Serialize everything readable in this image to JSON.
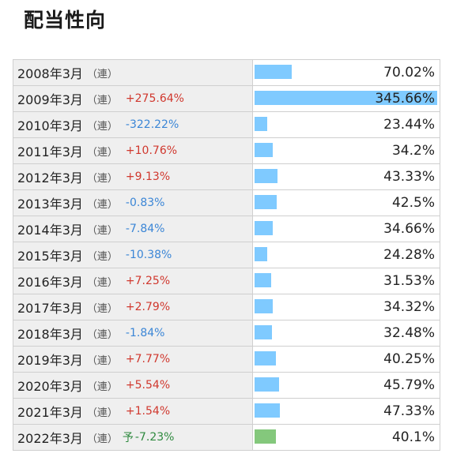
{
  "page": {
    "title": "配当性向"
  },
  "colors": {
    "bar": "#7fcaff",
    "bar_forecast": "#84c87c",
    "positive": "#d0382e",
    "negative": "#3b86d6",
    "forecast": "#2f8a3f"
  },
  "bar_scale_max": 345.66,
  "rows": [
    {
      "period": "2008年3月",
      "consol": "（連）",
      "yoy": "",
      "yoy_sign": "",
      "forecast_mark": "",
      "value": 70.02,
      "value_label": "70.02%",
      "forecast": false
    },
    {
      "period": "2009年3月",
      "consol": "（連）",
      "yoy": "+275.64%",
      "yoy_sign": "pos",
      "forecast_mark": "",
      "value": 345.66,
      "value_label": "345.66%",
      "forecast": false
    },
    {
      "period": "2010年3月",
      "consol": "（連）",
      "yoy": "-322.22%",
      "yoy_sign": "neg",
      "forecast_mark": "",
      "value": 23.44,
      "value_label": "23.44%",
      "forecast": false
    },
    {
      "period": "2011年3月",
      "consol": "（連）",
      "yoy": "+10.76%",
      "yoy_sign": "pos",
      "forecast_mark": "",
      "value": 34.2,
      "value_label": "34.2%",
      "forecast": false
    },
    {
      "period": "2012年3月",
      "consol": "（連）",
      "yoy": "+9.13%",
      "yoy_sign": "pos",
      "forecast_mark": "",
      "value": 43.33,
      "value_label": "43.33%",
      "forecast": false
    },
    {
      "period": "2013年3月",
      "consol": "（連）",
      "yoy": "-0.83%",
      "yoy_sign": "neg",
      "forecast_mark": "",
      "value": 42.5,
      "value_label": "42.5%",
      "forecast": false
    },
    {
      "period": "2014年3月",
      "consol": "（連）",
      "yoy": "-7.84%",
      "yoy_sign": "neg",
      "forecast_mark": "",
      "value": 34.66,
      "value_label": "34.66%",
      "forecast": false
    },
    {
      "period": "2015年3月",
      "consol": "（連）",
      "yoy": "-10.38%",
      "yoy_sign": "neg",
      "forecast_mark": "",
      "value": 24.28,
      "value_label": "24.28%",
      "forecast": false
    },
    {
      "period": "2016年3月",
      "consol": "（連）",
      "yoy": "+7.25%",
      "yoy_sign": "pos",
      "forecast_mark": "",
      "value": 31.53,
      "value_label": "31.53%",
      "forecast": false
    },
    {
      "period": "2017年3月",
      "consol": "（連）",
      "yoy": "+2.79%",
      "yoy_sign": "pos",
      "forecast_mark": "",
      "value": 34.32,
      "value_label": "34.32%",
      "forecast": false
    },
    {
      "period": "2018年3月",
      "consol": "（連）",
      "yoy": "-1.84%",
      "yoy_sign": "neg",
      "forecast_mark": "",
      "value": 32.48,
      "value_label": "32.48%",
      "forecast": false
    },
    {
      "period": "2019年3月",
      "consol": "（連）",
      "yoy": "+7.77%",
      "yoy_sign": "pos",
      "forecast_mark": "",
      "value": 40.25,
      "value_label": "40.25%",
      "forecast": false
    },
    {
      "period": "2020年3月",
      "consol": "（連）",
      "yoy": "+5.54%",
      "yoy_sign": "pos",
      "forecast_mark": "",
      "value": 45.79,
      "value_label": "45.79%",
      "forecast": false
    },
    {
      "period": "2021年3月",
      "consol": "（連）",
      "yoy": "+1.54%",
      "yoy_sign": "pos",
      "forecast_mark": "",
      "value": 47.33,
      "value_label": "47.33%",
      "forecast": false
    },
    {
      "period": "2022年3月",
      "consol": "（連）",
      "yoy": "-7.23%",
      "yoy_sign": "forecast",
      "forecast_mark": "予",
      "value": 40.1,
      "value_label": "40.1%",
      "forecast": true
    }
  ]
}
